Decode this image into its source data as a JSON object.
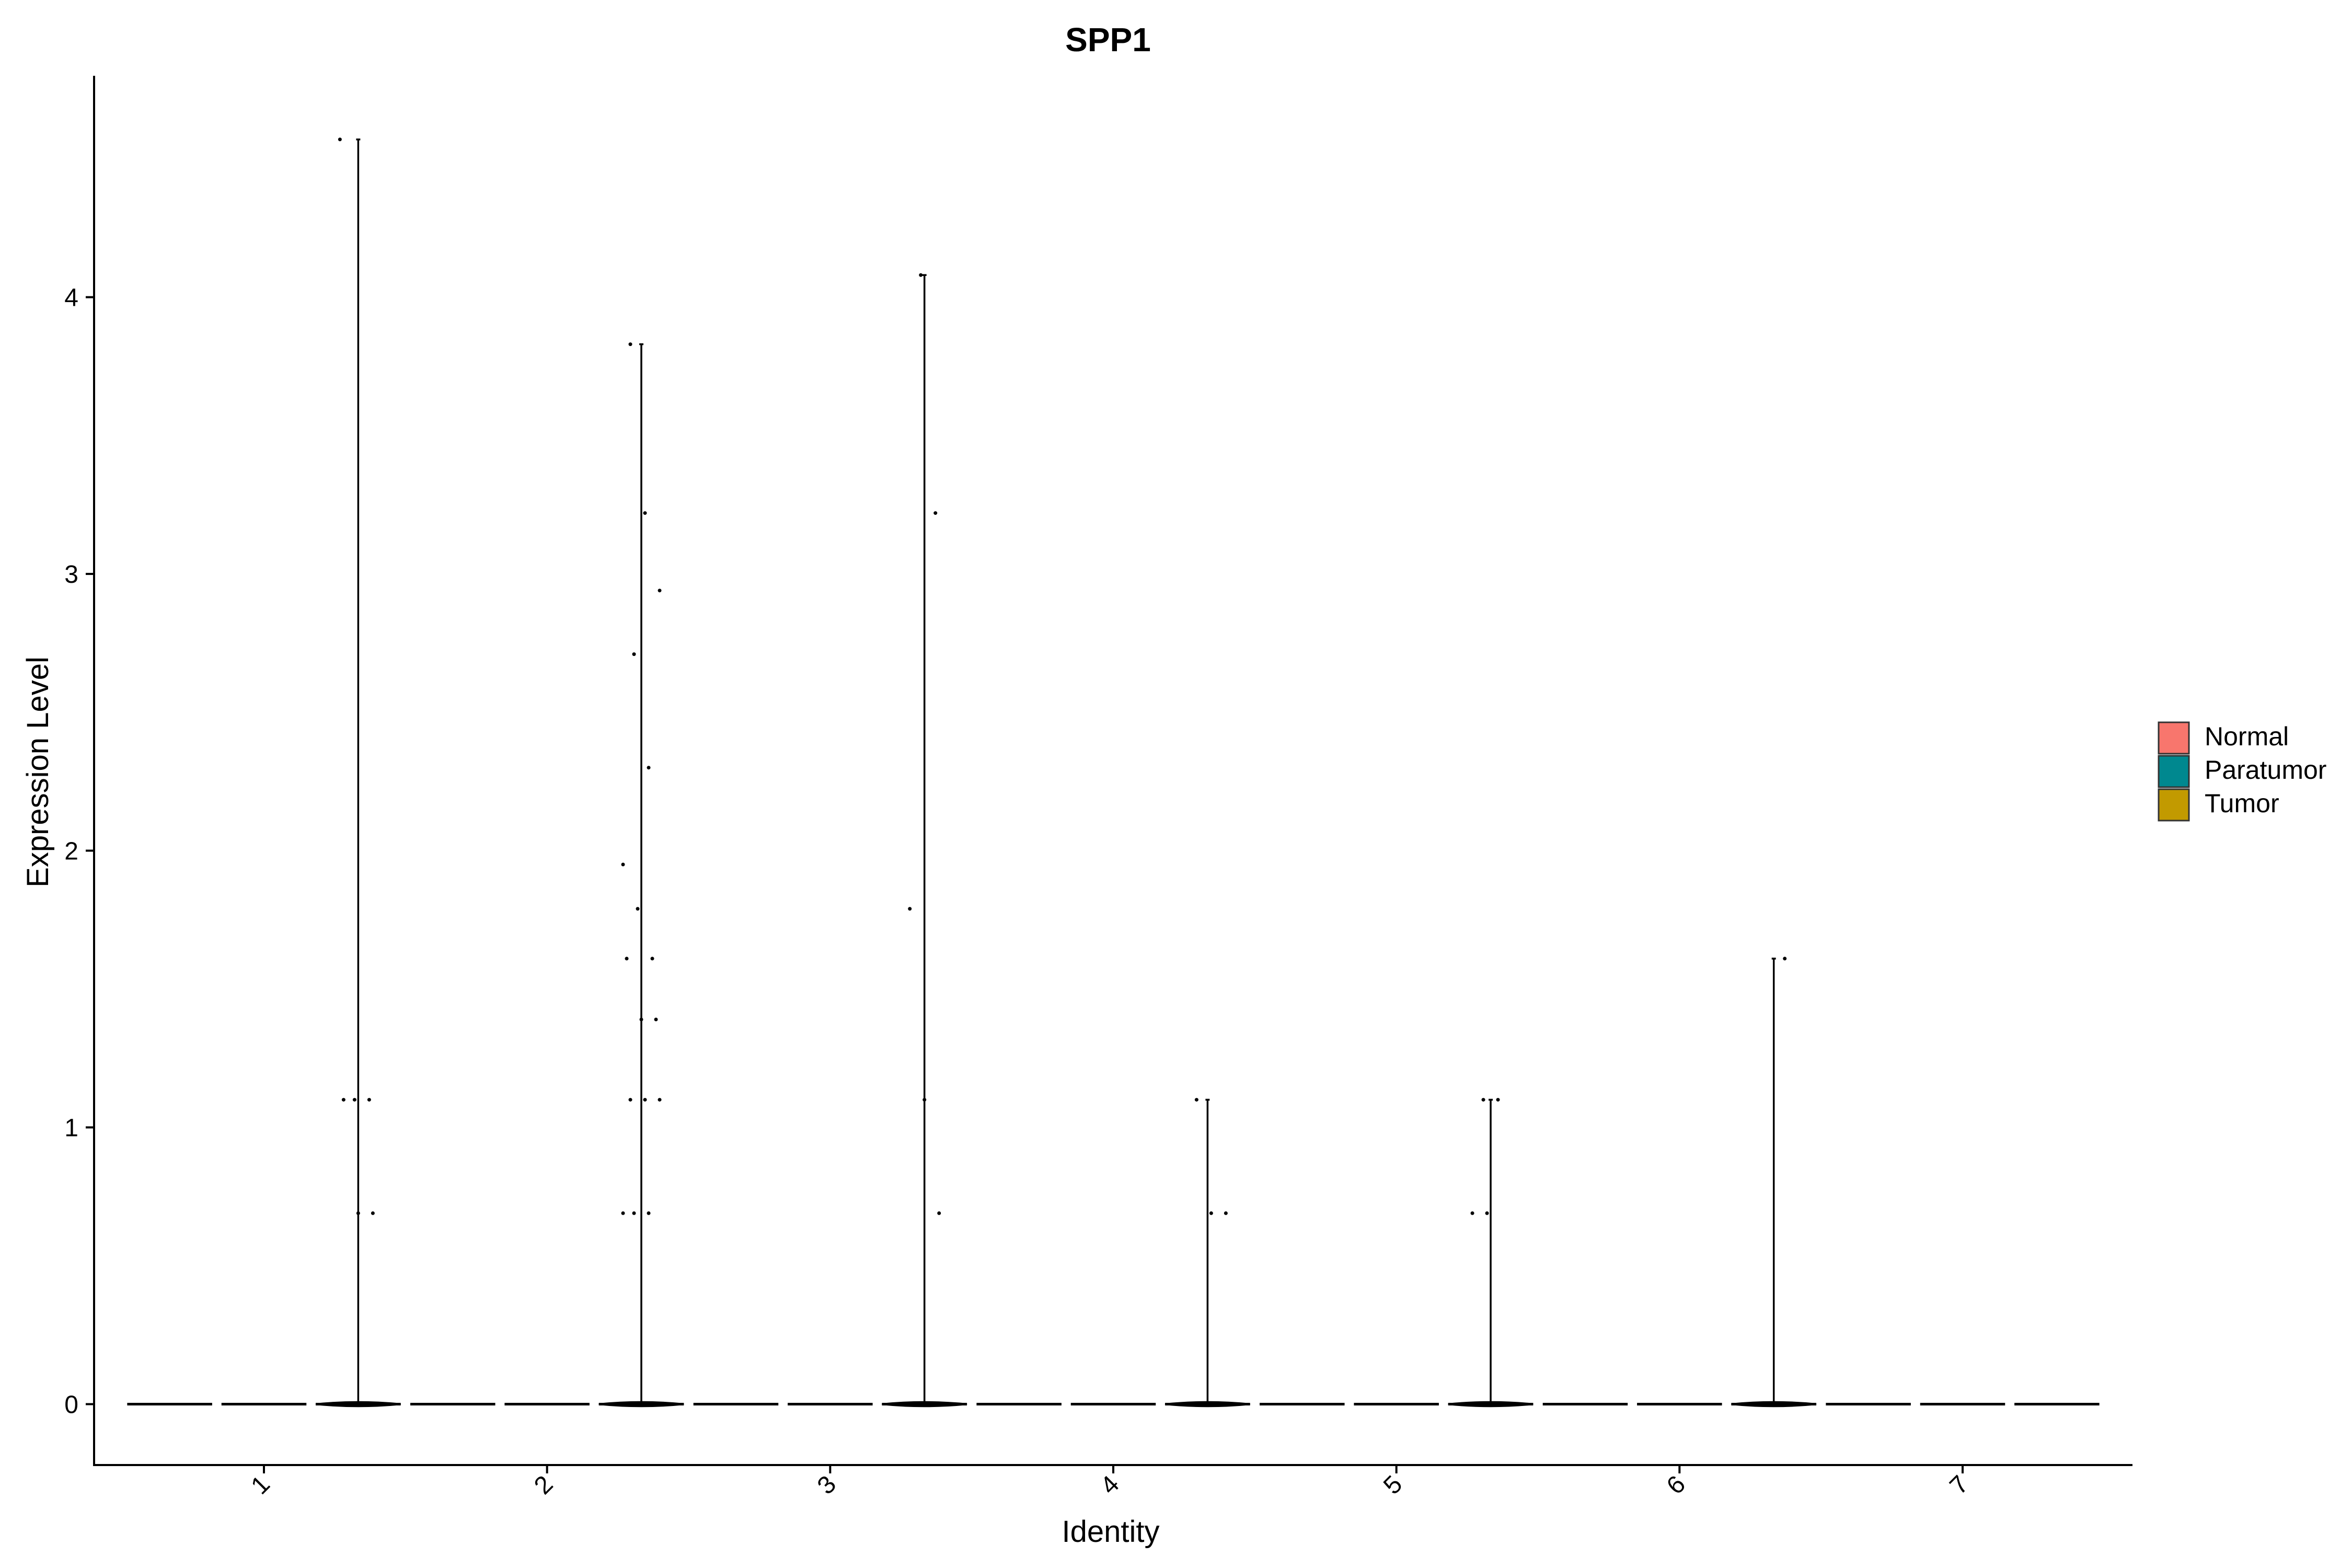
{
  "chart_data": {
    "type": "violin",
    "title": "SPP1",
    "xlabel": "Identity",
    "ylabel": "Expression Level",
    "categories": [
      "1",
      "2",
      "3",
      "4",
      "5",
      "6",
      "7"
    ],
    "yticks": [
      0,
      1,
      2,
      3,
      4
    ],
    "ylim": [
      -0.22,
      4.8
    ],
    "legend": {
      "position": "right",
      "entries": [
        {
          "name": "Normal",
          "color": "#F8766D"
        },
        {
          "name": "Paratumor",
          "color": "#00888F"
        },
        {
          "name": "Tumor",
          "color": "#C29A00"
        }
      ]
    },
    "series": [
      {
        "name": "Normal",
        "max_values": [
          0,
          0,
          0,
          0,
          0,
          0,
          0
        ]
      },
      {
        "name": "Paratumor",
        "max_values": [
          0,
          0,
          0,
          0,
          0,
          0,
          0
        ]
      },
      {
        "name": "Tumor",
        "max_values": [
          4.57,
          3.83,
          4.08,
          1.1,
          1.1,
          1.61,
          0
        ]
      }
    ],
    "points": [
      {
        "group": 1,
        "series": "Tumor",
        "y": 4.57
      },
      {
        "group": 1,
        "series": "Tumor",
        "y": 1.1
      },
      {
        "group": 1,
        "series": "Tumor",
        "y": 1.1
      },
      {
        "group": 1,
        "series": "Tumor",
        "y": 1.1
      },
      {
        "group": 1,
        "series": "Tumor",
        "y": 0.69
      },
      {
        "group": 1,
        "series": "Tumor",
        "y": 0.69
      },
      {
        "group": 2,
        "series": "Tumor",
        "y": 3.83
      },
      {
        "group": 2,
        "series": "Tumor",
        "y": 3.22
      },
      {
        "group": 2,
        "series": "Tumor",
        "y": 2.94
      },
      {
        "group": 2,
        "series": "Tumor",
        "y": 2.71
      },
      {
        "group": 2,
        "series": "Tumor",
        "y": 2.3
      },
      {
        "group": 2,
        "series": "Tumor",
        "y": 1.95
      },
      {
        "group": 2,
        "series": "Tumor",
        "y": 1.79
      },
      {
        "group": 2,
        "series": "Tumor",
        "y": 1.61
      },
      {
        "group": 2,
        "series": "Tumor",
        "y": 1.61
      },
      {
        "group": 2,
        "series": "Tumor",
        "y": 1.39
      },
      {
        "group": 2,
        "series": "Tumor",
        "y": 1.39
      },
      {
        "group": 2,
        "series": "Tumor",
        "y": 1.1
      },
      {
        "group": 2,
        "series": "Tumor",
        "y": 1.1
      },
      {
        "group": 2,
        "series": "Tumor",
        "y": 1.1
      },
      {
        "group": 2,
        "series": "Tumor",
        "y": 0.69
      },
      {
        "group": 2,
        "series": "Tumor",
        "y": 0.69
      },
      {
        "group": 2,
        "series": "Tumor",
        "y": 0.69
      },
      {
        "group": 3,
        "series": "Tumor",
        "y": 4.08
      },
      {
        "group": 3,
        "series": "Tumor",
        "y": 3.22
      },
      {
        "group": 3,
        "series": "Tumor",
        "y": 1.79
      },
      {
        "group": 3,
        "series": "Tumor",
        "y": 1.1
      },
      {
        "group": 3,
        "series": "Tumor",
        "y": 0.69
      },
      {
        "group": 4,
        "series": "Tumor",
        "y": 1.1
      },
      {
        "group": 4,
        "series": "Tumor",
        "y": 0.69
      },
      {
        "group": 4,
        "series": "Tumor",
        "y": 0.69
      },
      {
        "group": 5,
        "series": "Tumor",
        "y": 1.1
      },
      {
        "group": 5,
        "series": "Tumor",
        "y": 1.1
      },
      {
        "group": 5,
        "series": "Tumor",
        "y": 0.69
      },
      {
        "group": 5,
        "series": "Tumor",
        "y": 0.69
      },
      {
        "group": 6,
        "series": "Tumor",
        "y": 1.61
      }
    ]
  }
}
